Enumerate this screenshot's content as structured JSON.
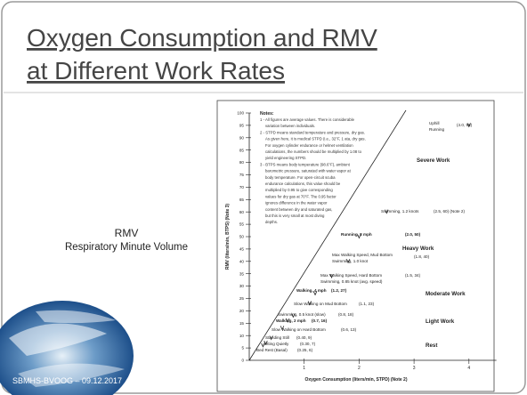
{
  "title": [
    "Oxygen Consumption and RMV",
    "at Different Work Rates"
  ],
  "side_label": [
    "RMV",
    "Respiratory Minute Volume"
  ],
  "footer": "SBMHS-BVOOG – 09.12.2017",
  "chart_data": {
    "type": "scatter",
    "notes_title": "Notes:",
    "notes": [
      "1 - All figures are average values. There is considerable",
      "variation between individuals.",
      "2 - STPD means standard temperature and pressure, dry gas.",
      "As given here, it is medical STPD (i.e., 32°F, 1 ata, dry gas.",
      "For oxygen cylinder endurance or helmet ventilation",
      "calculations, the numbers should be multiplied by 1.08 to",
      "yield engineering STPD.",
      "3 - BTPS means body temperature (98.6°F), ambient",
      "barometric pressure, saturated with water vapor at",
      "body temperature. For open-circuit scuba",
      "endurance calculations, this value should be",
      "multiplied by 0.95 to give corresponding",
      "values for dry gas at 70°F. The 0.95 factor",
      "ignores difference in the water vapor",
      "content between dry and saturated gas,",
      "but this is very small at most diving",
      "depths."
    ],
    "xlabel": "Oxygen Consumption (liters/min, STPD) (Note 2)",
    "ylabel": "RMV (liters/min, BTPS) (Note 3)",
    "xlim": [
      0,
      4.5
    ],
    "ylim": [
      0,
      100
    ],
    "xticks": [
      1,
      2,
      3,
      4
    ],
    "yticks": [
      0,
      5,
      10,
      15,
      20,
      25,
      30,
      35,
      40,
      45,
      50,
      55,
      60,
      65,
      70,
      75,
      80,
      85,
      90,
      95,
      100
    ],
    "zones": [
      "Severe Work",
      "Heavy Work",
      "Moderate Work",
      "Light Work",
      "Rest"
    ],
    "points": [
      {
        "label": [
          "Uphill",
          "Running"
        ],
        "coords": "(4.0, 95)",
        "x": 4.0,
        "y": 95,
        "bold": false
      },
      {
        "label": [
          "Swimming, 1.2 knots"
        ],
        "coords": "(2.5, 60) (Note 2)",
        "x": 2.5,
        "y": 60,
        "bold": false
      },
      {
        "label": [
          "Running, 8 mph"
        ],
        "coords": "(2.0, 50)",
        "x": 2.0,
        "y": 50,
        "bold": true
      },
      {
        "label": [
          "Max Walking Speed, Mud Bottom",
          "Swimming, 1.0 knot"
        ],
        "coords": "(1.8, 40)",
        "x": 1.8,
        "y": 40,
        "bold": false
      },
      {
        "label": [
          "Max Walking Speed, Hard Bottom",
          "Swimming, 0.85 knot (avg. speed)"
        ],
        "coords": "(1.5, 34)",
        "x": 1.5,
        "y": 34,
        "bold": false
      },
      {
        "label": [
          "Walking, 4 mph"
        ],
        "coords": "(1.2, 27)",
        "x": 1.2,
        "y": 27,
        "bold": true
      },
      {
        "label": [
          "Slow Walking on Mud Bottom"
        ],
        "coords": "(1.1, 23)",
        "x": 1.1,
        "y": 23,
        "bold": false
      },
      {
        "label": [
          "Swimming, 0.5 knot (slow)"
        ],
        "coords": "(0.8, 18)",
        "x": 0.8,
        "y": 18,
        "bold": false
      },
      {
        "label": [
          "Walking, 2 mph"
        ],
        "coords": "(0.7, 16)",
        "x": 0.7,
        "y": 16,
        "bold": true
      },
      {
        "label": [
          "Slow Walking on Hard Bottom"
        ],
        "coords": "(0.6, 13)",
        "x": 0.6,
        "y": 13,
        "bold": false
      },
      {
        "label": [
          "Standing Still"
        ],
        "coords": "(0.40, 9)",
        "x": 0.4,
        "y": 9,
        "bold": false
      },
      {
        "label": [
          "Sitting Quietly"
        ],
        "coords": "(0.30, 7)",
        "x": 0.3,
        "y": 7,
        "bold": false
      },
      {
        "label": [
          "Bed Rest (Basal)"
        ],
        "coords": "(0.25, 6)",
        "x": 0.25,
        "y": 6,
        "bold": false
      }
    ]
  }
}
